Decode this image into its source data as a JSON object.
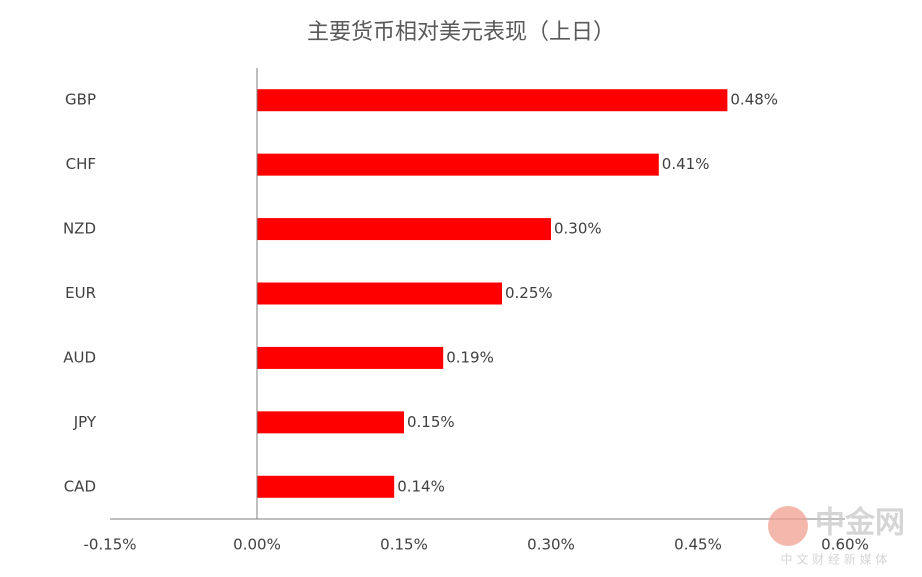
{
  "chart_data": {
    "type": "bar",
    "orientation": "horizontal",
    "title": "主要货币相对美元表现（上日）",
    "categories": [
      "GBP",
      "CHF",
      "NZD",
      "EUR",
      "AUD",
      "JPY",
      "CAD"
    ],
    "values": [
      0.48,
      0.41,
      0.3,
      0.25,
      0.19,
      0.15,
      0.14
    ],
    "value_labels": [
      "0.48%",
      "0.41%",
      "0.30%",
      "0.25%",
      "0.19%",
      "0.15%",
      "0.14%"
    ],
    "color": "#ff0000",
    "xlim": [
      -0.15,
      0.6
    ],
    "xticks": [
      {
        "value": -0.15,
        "label": "-0.15%"
      },
      {
        "value": 0,
        "label": "0.00%"
      },
      {
        "value": 0.15,
        "label": "0.15%"
      },
      {
        "value": 0.3,
        "label": "0.30%"
      },
      {
        "value": 0.45,
        "label": "0.45%"
      },
      {
        "value": 0.6,
        "label": "0.60%"
      }
    ],
    "grid": false,
    "watermark": {
      "name": "中金网",
      "slogan": "中 文 财 经 新 媒 体"
    }
  }
}
